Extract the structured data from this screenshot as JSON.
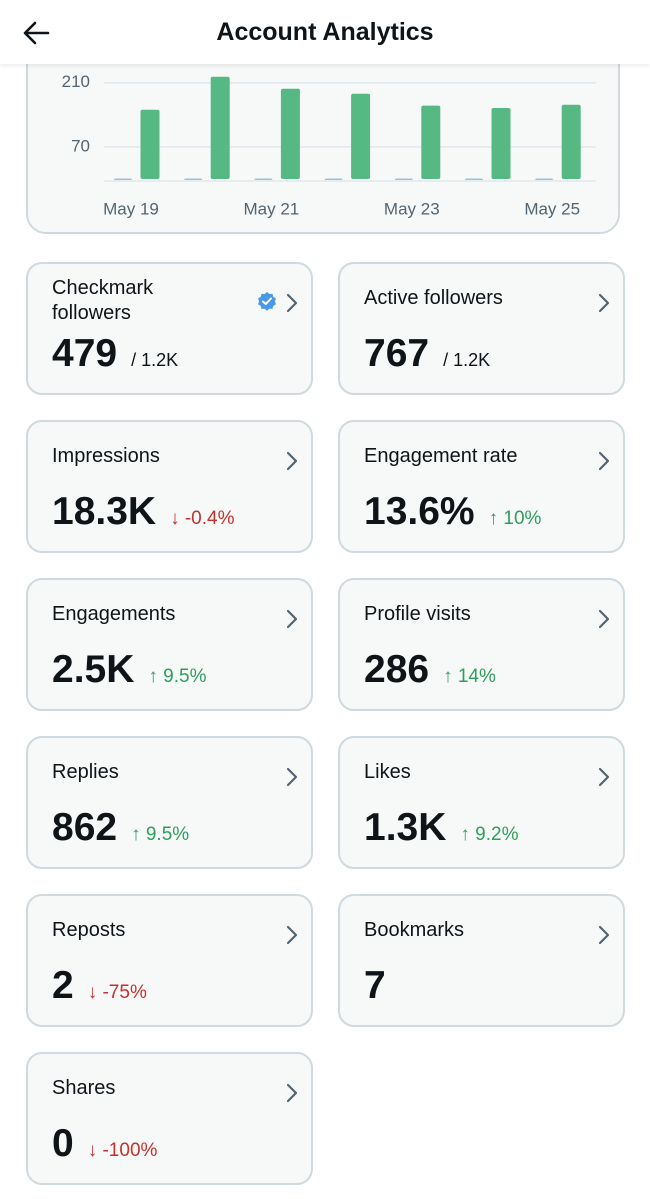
{
  "header": {
    "title": "Account Analytics"
  },
  "chart_data": {
    "type": "bar",
    "categories": [
      "May 19",
      null,
      "May 21",
      null,
      "May 23",
      null,
      "May 25"
    ],
    "series": [
      {
        "color": "#9dbfd9",
        "values": [
          1,
          1,
          1,
          1,
          1,
          1,
          1
        ]
      },
      {
        "color": "#56b883",
        "values": [
          151,
          223,
          197,
          186,
          160,
          155,
          162
        ]
      }
    ],
    "ylim": [
      0,
      240
    ],
    "yticks": [
      70,
      210
    ],
    "grid": true
  },
  "cards": [
    {
      "label": "Checkmark followers",
      "value": "479",
      "sub": "/ 1.2K",
      "verified": true
    },
    {
      "label": "Active followers",
      "value": "767",
      "sub": "/ 1.2K"
    },
    {
      "label": "Impressions",
      "value": "18.3K",
      "change": "↓ -0.4%"
    },
    {
      "label": "Engagement rate",
      "value": "13.6%",
      "change": "↑ 10%"
    },
    {
      "label": "Engagements",
      "value": "2.5K",
      "change": "↑ 9.5%"
    },
    {
      "label": "Profile visits",
      "value": "286",
      "change": "↑ 14%"
    },
    {
      "label": "Replies",
      "value": "862",
      "change": "↑ 9.5%"
    },
    {
      "label": "Likes",
      "value": "1.3K",
      "change": "↑ 9.2%"
    },
    {
      "label": "Reposts",
      "value": "2",
      "change": "↓ -75%"
    },
    {
      "label": "Bookmarks",
      "value": "7"
    },
    {
      "label": "Shares",
      "value": "0",
      "change": "↓ -100%"
    }
  ]
}
